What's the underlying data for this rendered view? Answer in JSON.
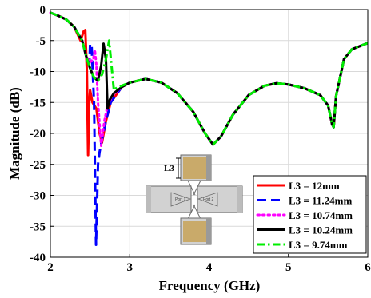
{
  "chart_data": {
    "type": "line",
    "title": "",
    "xlabel": "Frequency (GHz)",
    "ylabel": "Magnitude (dB)",
    "xlim": [
      2,
      6
    ],
    "ylim": [
      -40,
      0
    ],
    "xticks": [
      2,
      3,
      4,
      5,
      6
    ],
    "yticks": [
      0,
      -5,
      -10,
      -15,
      -20,
      -25,
      -30,
      -35,
      -40
    ],
    "grid": true,
    "legend_position": "bottom-right",
    "series": [
      {
        "name": "L3 = 12mm",
        "color": "#ff0000",
        "dash": "solid",
        "points": [
          [
            2.0,
            -0.5
          ],
          [
            2.1,
            -1.0
          ],
          [
            2.2,
            -1.6
          ],
          [
            2.3,
            -2.8
          ],
          [
            2.38,
            -5.0
          ],
          [
            2.42,
            -3.5
          ],
          [
            2.44,
            -3.3
          ],
          [
            2.46,
            -10.0
          ],
          [
            2.475,
            -23.5
          ],
          [
            2.49,
            -15.0
          ],
          [
            2.5,
            -13.0
          ],
          [
            2.53,
            -15.0
          ],
          [
            2.58,
            -16.0
          ],
          [
            2.62,
            -20.0
          ],
          [
            2.65,
            -21.5
          ],
          [
            2.7,
            -18.0
          ],
          [
            2.76,
            -15.0
          ],
          [
            2.9,
            -12.5
          ],
          [
            3.0,
            -11.8
          ],
          [
            3.2,
            -11.2
          ],
          [
            3.4,
            -11.8
          ],
          [
            3.6,
            -13.5
          ],
          [
            3.8,
            -16.5
          ],
          [
            3.95,
            -20.0
          ],
          [
            4.05,
            -21.8
          ],
          [
            4.15,
            -20.5
          ],
          [
            4.3,
            -17.0
          ],
          [
            4.5,
            -13.8
          ],
          [
            4.7,
            -12.3
          ],
          [
            4.85,
            -11.9
          ],
          [
            5.0,
            -12.1
          ],
          [
            5.2,
            -12.7
          ],
          [
            5.4,
            -13.8
          ],
          [
            5.5,
            -15.5
          ],
          [
            5.55,
            -18.5
          ],
          [
            5.57,
            -19.0
          ],
          [
            5.6,
            -14.0
          ],
          [
            5.7,
            -8.0
          ],
          [
            5.8,
            -6.4
          ],
          [
            6.0,
            -5.4
          ]
        ]
      },
      {
        "name": "L3 = 11.24mm",
        "color": "#0000ff",
        "dash": "dashed",
        "points": [
          [
            2.0,
            -0.5
          ],
          [
            2.1,
            -1.0
          ],
          [
            2.2,
            -1.6
          ],
          [
            2.3,
            -2.8
          ],
          [
            2.4,
            -5.0
          ],
          [
            2.45,
            -7.5
          ],
          [
            2.49,
            -9.0
          ],
          [
            2.5,
            -5.5
          ],
          [
            2.52,
            -6.0
          ],
          [
            2.55,
            -15.0
          ],
          [
            2.575,
            -38.0
          ],
          [
            2.6,
            -25.0
          ],
          [
            2.62,
            -23.0
          ],
          [
            2.65,
            -21.0
          ],
          [
            2.7,
            -18.0
          ],
          [
            2.76,
            -15.0
          ],
          [
            2.9,
            -12.5
          ],
          [
            3.0,
            -11.8
          ],
          [
            3.2,
            -11.2
          ],
          [
            3.4,
            -11.8
          ],
          [
            3.6,
            -13.5
          ],
          [
            3.8,
            -16.5
          ],
          [
            3.95,
            -20.0
          ],
          [
            4.05,
            -21.8
          ],
          [
            4.15,
            -20.5
          ],
          [
            4.3,
            -17.0
          ],
          [
            4.5,
            -13.8
          ],
          [
            4.7,
            -12.3
          ],
          [
            4.85,
            -11.9
          ],
          [
            5.0,
            -12.1
          ],
          [
            5.2,
            -12.7
          ],
          [
            5.4,
            -13.8
          ],
          [
            5.5,
            -15.5
          ],
          [
            5.55,
            -18.5
          ],
          [
            5.57,
            -19.0
          ],
          [
            5.6,
            -14.0
          ],
          [
            5.7,
            -8.0
          ],
          [
            5.8,
            -6.4
          ],
          [
            6.0,
            -5.4
          ]
        ]
      },
      {
        "name": "L3 = 10.74mm",
        "color": "#ff00ff",
        "dash": "dotted",
        "points": [
          [
            2.0,
            -0.5
          ],
          [
            2.1,
            -1.0
          ],
          [
            2.2,
            -1.6
          ],
          [
            2.3,
            -2.8
          ],
          [
            2.4,
            -5.0
          ],
          [
            2.45,
            -7.5
          ],
          [
            2.5,
            -8.5
          ],
          [
            2.54,
            -8.0
          ],
          [
            2.56,
            -6.5
          ],
          [
            2.58,
            -9.0
          ],
          [
            2.6,
            -15.0
          ],
          [
            2.64,
            -22.0
          ],
          [
            2.68,
            -18.0
          ],
          [
            2.72,
            -15.5
          ],
          [
            2.78,
            -14.0
          ],
          [
            2.9,
            -12.5
          ],
          [
            3.0,
            -11.8
          ],
          [
            3.2,
            -11.2
          ],
          [
            3.4,
            -11.8
          ],
          [
            3.6,
            -13.5
          ],
          [
            3.8,
            -16.5
          ],
          [
            3.95,
            -20.0
          ],
          [
            4.05,
            -21.8
          ],
          [
            4.15,
            -20.5
          ],
          [
            4.3,
            -17.0
          ],
          [
            4.5,
            -13.8
          ],
          [
            4.7,
            -12.3
          ],
          [
            4.85,
            -11.9
          ],
          [
            5.0,
            -12.1
          ],
          [
            5.2,
            -12.7
          ],
          [
            5.4,
            -13.8
          ],
          [
            5.5,
            -15.5
          ],
          [
            5.55,
            -18.5
          ],
          [
            5.57,
            -19.0
          ],
          [
            5.6,
            -14.0
          ],
          [
            5.7,
            -8.0
          ],
          [
            5.8,
            -6.4
          ],
          [
            6.0,
            -5.4
          ]
        ]
      },
      {
        "name": "L3 = 10.24mm",
        "color": "#000000",
        "dash": "solid",
        "points": [
          [
            2.0,
            -0.5
          ],
          [
            2.1,
            -1.0
          ],
          [
            2.2,
            -1.6
          ],
          [
            2.3,
            -2.8
          ],
          [
            2.4,
            -5.0
          ],
          [
            2.45,
            -7.5
          ],
          [
            2.5,
            -9.5
          ],
          [
            2.55,
            -11.0
          ],
          [
            2.6,
            -11.5
          ],
          [
            2.64,
            -9.0
          ],
          [
            2.67,
            -5.5
          ],
          [
            2.7,
            -8.0
          ],
          [
            2.72,
            -16.0
          ],
          [
            2.75,
            -14.5
          ],
          [
            2.8,
            -13.5
          ],
          [
            2.9,
            -12.5
          ],
          [
            3.0,
            -11.8
          ],
          [
            3.2,
            -11.2
          ],
          [
            3.4,
            -11.8
          ],
          [
            3.6,
            -13.5
          ],
          [
            3.8,
            -16.5
          ],
          [
            3.95,
            -20.0
          ],
          [
            4.05,
            -21.8
          ],
          [
            4.15,
            -20.5
          ],
          [
            4.3,
            -17.0
          ],
          [
            4.5,
            -13.8
          ],
          [
            4.7,
            -12.3
          ],
          [
            4.85,
            -11.9
          ],
          [
            5.0,
            -12.1
          ],
          [
            5.2,
            -12.7
          ],
          [
            5.4,
            -13.8
          ],
          [
            5.5,
            -15.5
          ],
          [
            5.55,
            -18.5
          ],
          [
            5.57,
            -19.0
          ],
          [
            5.6,
            -14.0
          ],
          [
            5.7,
            -8.0
          ],
          [
            5.8,
            -6.4
          ],
          [
            6.0,
            -5.4
          ]
        ]
      },
      {
        "name": "L3 = 9.74mm",
        "color": "#00ee00",
        "dash": "dashdot",
        "points": [
          [
            2.0,
            -0.5
          ],
          [
            2.1,
            -1.0
          ],
          [
            2.2,
            -1.6
          ],
          [
            2.3,
            -2.8
          ],
          [
            2.4,
            -5.0
          ],
          [
            2.45,
            -7.5
          ],
          [
            2.5,
            -9.5
          ],
          [
            2.55,
            -11.0
          ],
          [
            2.6,
            -11.5
          ],
          [
            2.65,
            -10.5
          ],
          [
            2.7,
            -8.0
          ],
          [
            2.74,
            -5.0
          ],
          [
            2.77,
            -9.0
          ],
          [
            2.8,
            -13.0
          ],
          [
            2.85,
            -12.5
          ],
          [
            2.9,
            -12.3
          ],
          [
            3.0,
            -11.8
          ],
          [
            3.2,
            -11.2
          ],
          [
            3.4,
            -11.8
          ],
          [
            3.6,
            -13.5
          ],
          [
            3.8,
            -16.5
          ],
          [
            3.95,
            -20.0
          ],
          [
            4.05,
            -21.8
          ],
          [
            4.15,
            -20.5
          ],
          [
            4.3,
            -17.0
          ],
          [
            4.5,
            -13.8
          ],
          [
            4.7,
            -12.3
          ],
          [
            4.85,
            -11.9
          ],
          [
            5.0,
            -12.1
          ],
          [
            5.2,
            -12.7
          ],
          [
            5.4,
            -13.8
          ],
          [
            5.5,
            -15.5
          ],
          [
            5.55,
            -18.5
          ],
          [
            5.57,
            -19.0
          ],
          [
            5.6,
            -14.0
          ],
          [
            5.7,
            -8.0
          ],
          [
            5.8,
            -6.4
          ],
          [
            6.0,
            -5.4
          ]
        ]
      }
    ]
  },
  "inset": {
    "dimension_label": "L3",
    "port1_label": "Port 1",
    "port2_label": "Port 2",
    "colors": {
      "body": "#d2d2d2",
      "copper": "#c9aa6a",
      "outline": "#6a6a6a"
    }
  }
}
